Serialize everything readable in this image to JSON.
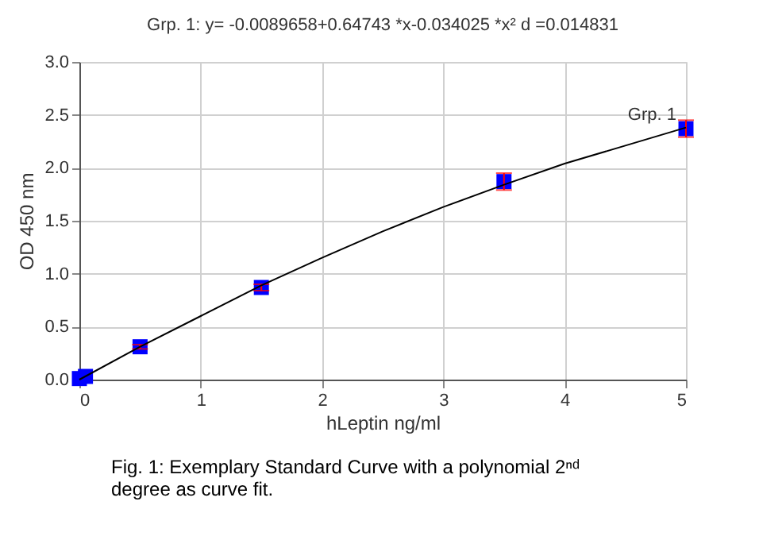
{
  "chart_data": {
    "type": "scatter",
    "title": "Grp. 1: y= -0.0089658+0.64743 *x-0.034025 *x²   d =0.014831",
    "xlabel": "hLeptin ng/ml",
    "ylabel": "OD 450 nm",
    "xlim": [
      0,
      5
    ],
    "xticks": [
      0,
      1,
      2,
      3,
      4,
      5
    ],
    "ylim": [
      0,
      3
    ],
    "yticks": [
      {
        "value": 0,
        "label": "0.0"
      },
      {
        "value": 0.5,
        "label": "0.5"
      },
      {
        "value": 1,
        "label": "1.0"
      },
      {
        "value": 1.5,
        "label": "1.5"
      },
      {
        "value": 2,
        "label": "2.0"
      },
      {
        "value": 2.5,
        "label": "2.5"
      },
      {
        "value": 3,
        "label": "3.0"
      }
    ],
    "grid": true,
    "marker": "square",
    "series": [
      {
        "color": "#0000ff",
        "x": [
          0,
          0.05,
          0.5,
          1.5,
          3.5,
          5
        ],
        "values": [
          0.01,
          0.03,
          0.31,
          0.87,
          1.87,
          2.37
        ],
        "errors": [
          null,
          null,
          0.02,
          0.03,
          0.08,
          0.08
        ]
      },
      {
        "type": "line",
        "name": "Grp. 1",
        "color": "#000000",
        "line_style": "solid",
        "marker": "none",
        "x": [
          0,
          0.5,
          1,
          1.5,
          2,
          2.5,
          3,
          3.5,
          4,
          4.5,
          5
        ],
        "values": [
          0.0,
          0.31,
          0.6,
          0.89,
          1.15,
          1.4,
          1.63,
          1.84,
          2.04,
          2.21,
          2.38
        ]
      }
    ],
    "annotations": [
      "Fig. 1: Exemplary Standard Curve with a polynomial 2ⁿᵈ degree as curve fit."
    ]
  }
}
